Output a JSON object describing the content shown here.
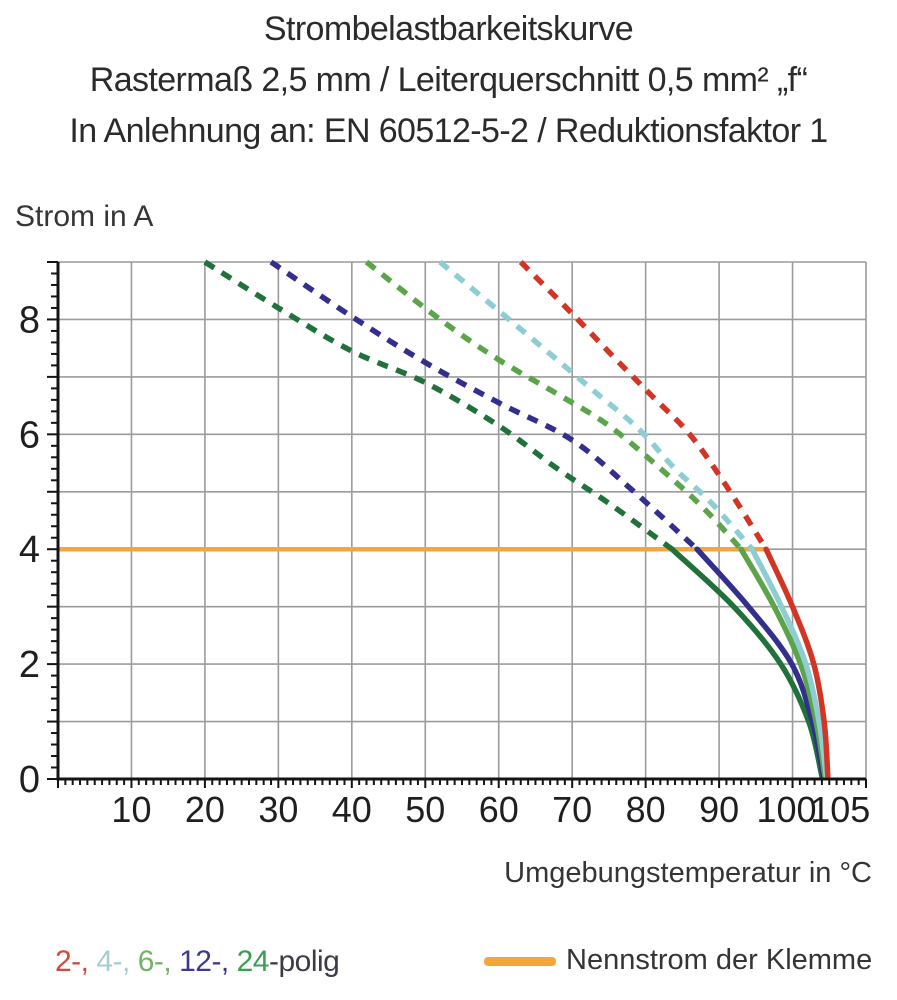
{
  "title": {
    "line1": "Strombelastbarkeitskurve",
    "line2": "Rastermaß 2,5 mm / Leiterquerschnitt 0,5 mm² „f“",
    "line3": "In Anlehnung an: EN 60512-5-2 / Reduktionsfaktor 1"
  },
  "chart_data": {
    "type": "line",
    "title": "Strombelastbarkeitskurve",
    "xlabel": "Umgebungstemperatur in °C",
    "ylabel": "Strom in A",
    "xlim": [
      0,
      110
    ],
    "ylim": [
      0,
      9
    ],
    "x_major_ticks": [
      10,
      20,
      30,
      40,
      50,
      60,
      70,
      80,
      90,
      100,
      105
    ],
    "x_gridline_step": 10,
    "x_minor_tick_step": 1,
    "y_tick_labels": [
      0,
      2,
      4,
      6,
      8
    ],
    "y_gridline_step": 1,
    "y_minor_tick_step": 0.2,
    "grid": true,
    "grid_color": "#9b9b9b",
    "axis_color": "#141414",
    "nennstrom_line": {
      "y": 4,
      "x_start": 0,
      "x_end": 96.4,
      "color": "#f3a63b",
      "label": "Nennstrom der Klemme"
    },
    "series": [
      {
        "name": "2-polig",
        "color": "#d23524",
        "points_dashed": [
          [
            63,
            9.0
          ],
          [
            70,
            8.1
          ],
          [
            76,
            7.3
          ],
          [
            81,
            6.65
          ],
          [
            86,
            6.0
          ],
          [
            91,
            5.1
          ],
          [
            96.4,
            4.0
          ]
        ],
        "points_solid": [
          [
            96.4,
            4.0
          ],
          [
            100,
            3.0
          ],
          [
            102.9,
            2.0
          ],
          [
            104.3,
            1.0
          ],
          [
            104.8,
            0.05
          ]
        ]
      },
      {
        "name": "4-polig",
        "color": "#8ecdd3",
        "points_dashed": [
          [
            52,
            9.0
          ],
          [
            60,
            8.15
          ],
          [
            67,
            7.4
          ],
          [
            73,
            6.75
          ],
          [
            79,
            6.1
          ],
          [
            84,
            5.4
          ],
          [
            89,
            4.8
          ],
          [
            94.5,
            4.0
          ]
        ],
        "points_solid": [
          [
            94.5,
            4.0
          ],
          [
            98.5,
            3.0
          ],
          [
            101.8,
            2.0
          ],
          [
            103.6,
            1.0
          ],
          [
            104.6,
            0.05
          ]
        ]
      },
      {
        "name": "6-polig",
        "color": "#5ba44a",
        "points_dashed": [
          [
            42,
            9.0
          ],
          [
            52,
            8.0
          ],
          [
            60,
            7.3
          ],
          [
            68,
            6.7
          ],
          [
            75,
            6.15
          ],
          [
            82.5,
            5.35
          ],
          [
            88,
            4.7
          ],
          [
            93,
            4.0
          ]
        ],
        "points_solid": [
          [
            93,
            4.0
          ],
          [
            97.5,
            3.0
          ],
          [
            101.1,
            2.0
          ],
          [
            103.2,
            1.0
          ],
          [
            104.4,
            0.05
          ]
        ]
      },
      {
        "name": "12-polig",
        "color": "#322f8e",
        "points_dashed": [
          [
            29,
            9.0
          ],
          [
            40,
            8.05
          ],
          [
            50,
            7.25
          ],
          [
            60,
            6.55
          ],
          [
            70,
            5.9
          ],
          [
            78,
            5.05
          ],
          [
            87,
            4.0
          ]
        ],
        "points_solid": [
          [
            87,
            4.0
          ],
          [
            94,
            3.0
          ],
          [
            99.9,
            2.0
          ],
          [
            102.7,
            1.0
          ],
          [
            104.2,
            0.05
          ]
        ]
      },
      {
        "name": "24-polig",
        "color": "#20713a",
        "points_dashed": [
          [
            20,
            9.0
          ],
          [
            30,
            8.2
          ],
          [
            40,
            7.45
          ],
          [
            50,
            6.9
          ],
          [
            60,
            6.15
          ],
          [
            68,
            5.4
          ],
          [
            75,
            4.8
          ],
          [
            83.6,
            4.0
          ]
        ],
        "points_solid": [
          [
            83.6,
            4.0
          ],
          [
            92,
            3.0
          ],
          [
            98.4,
            2.0
          ],
          [
            102.2,
            1.0
          ],
          [
            104.0,
            0.05
          ]
        ]
      }
    ]
  },
  "legend": {
    "series_label_parts": [
      {
        "text": "2-,",
        "color": "#cd4a3c"
      },
      {
        "text": " 4-,",
        "color": "#a5ced4"
      },
      {
        "text": " 6-,",
        "color": "#74b265"
      },
      {
        "text": " 12-,",
        "color": "#3c3a8a"
      },
      {
        "text": " 24",
        "color": "#3a9e53"
      },
      {
        "text": "-polig",
        "color": "#3c3c46"
      }
    ],
    "nennstrom_label": "Nennstrom der Klemme"
  }
}
